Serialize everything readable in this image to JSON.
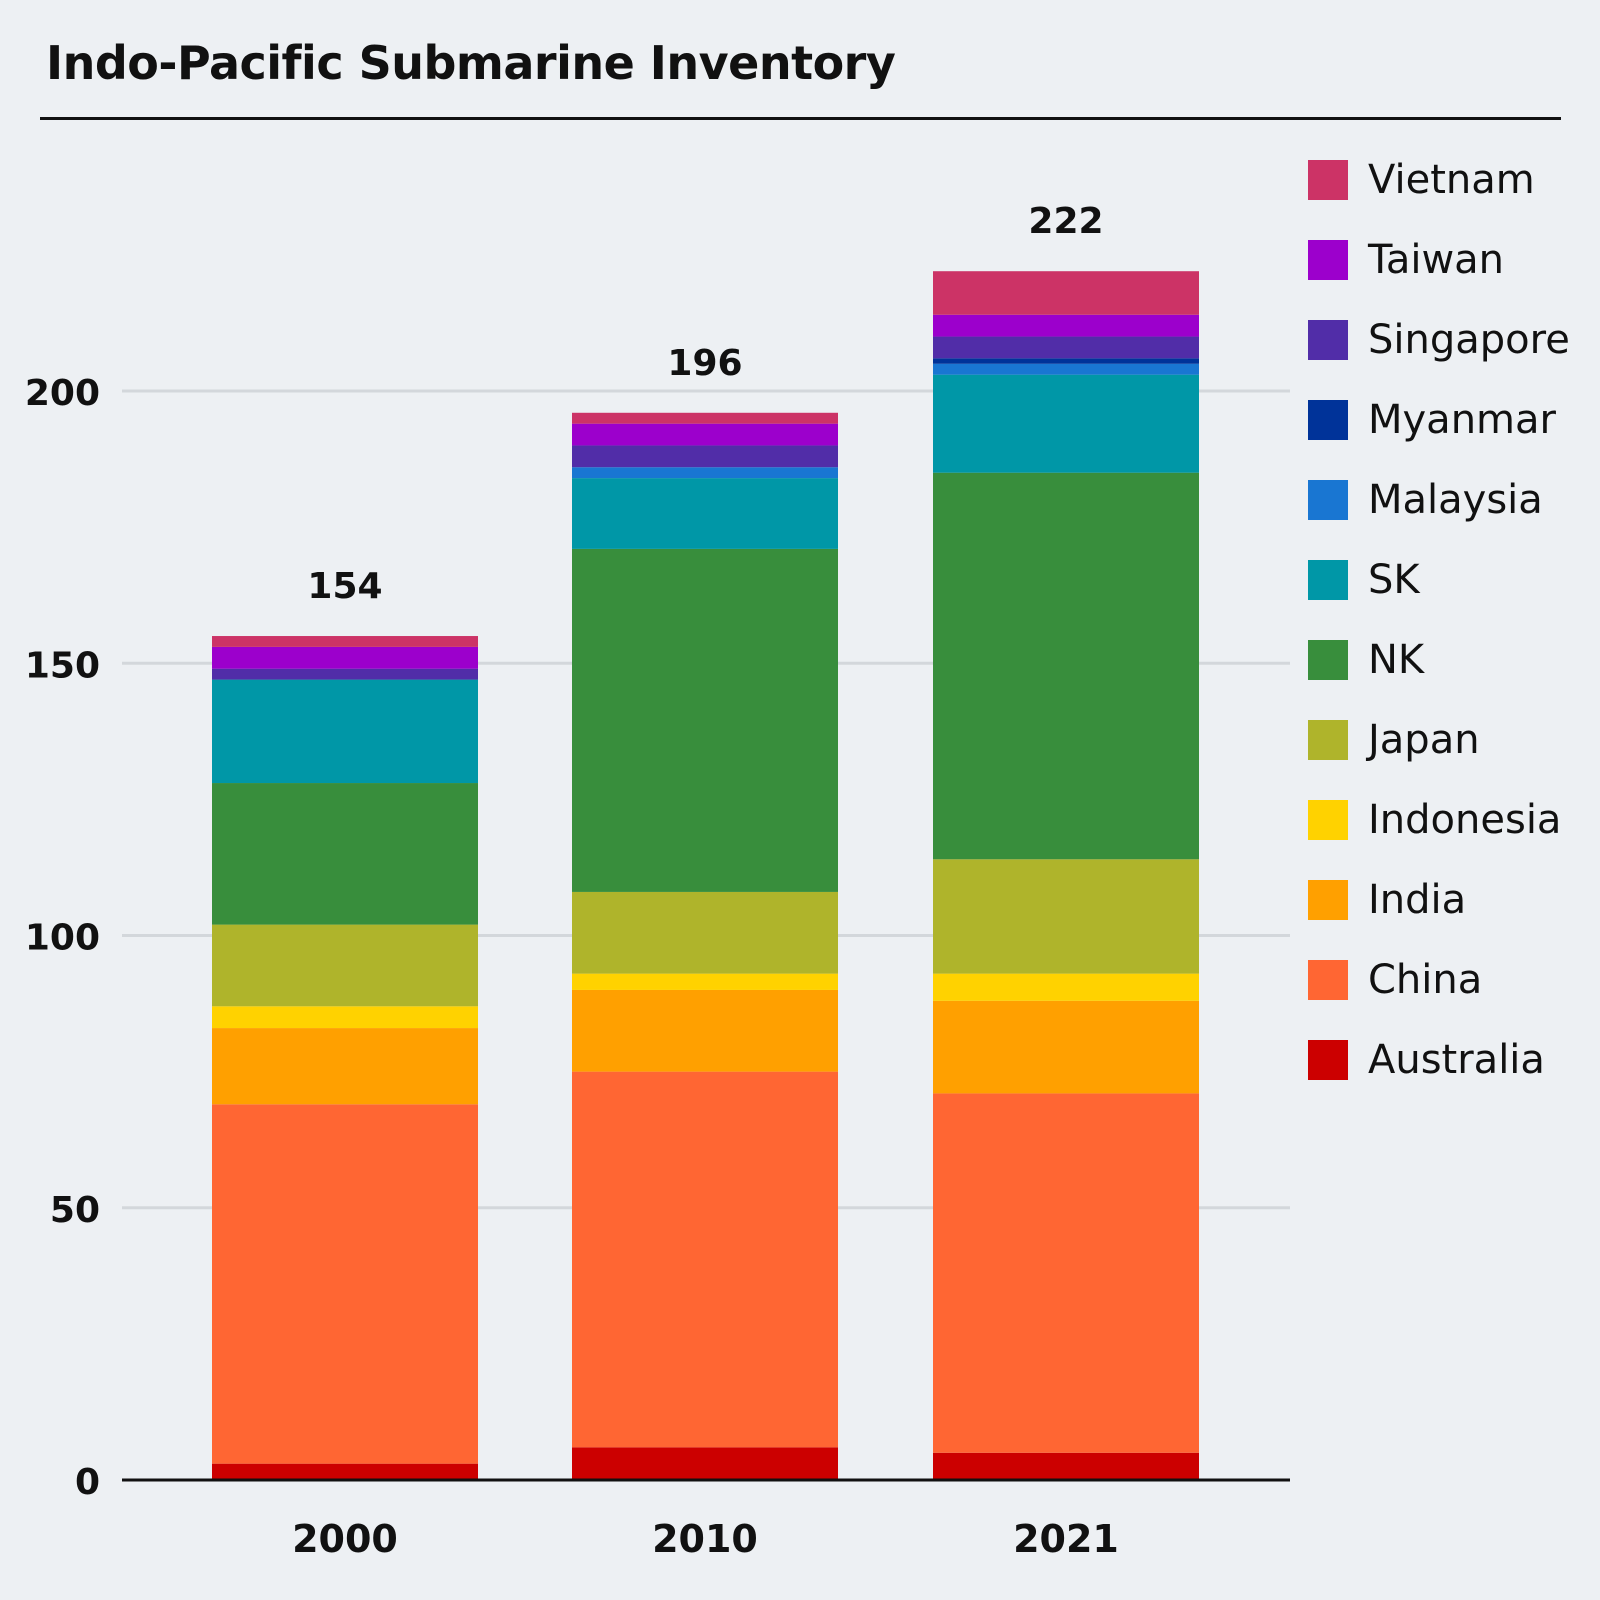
{
  "chart_data": {
    "type": "bar",
    "stacked": true,
    "title": "Indo-Pacific Submarine Inventory",
    "xlabel": "",
    "ylabel": "",
    "ylim": [
      0,
      230
    ],
    "yticks": [
      0,
      50,
      100,
      150,
      200
    ],
    "grid": true,
    "legend": "right",
    "categories": [
      "2000",
      "2010",
      "2021"
    ],
    "totals": [
      "154",
      "196",
      "222"
    ],
    "series": [
      {
        "name": "Australia",
        "color": "#cc0000",
        "values": [
          3,
          6,
          5
        ]
      },
      {
        "name": "China",
        "color": "#ff6633",
        "values": [
          66,
          69,
          66
        ]
      },
      {
        "name": "India",
        "color": "#ffa000",
        "values": [
          14,
          15,
          17
        ]
      },
      {
        "name": "Indonesia",
        "color": "#ffd200",
        "values": [
          4,
          3,
          5
        ]
      },
      {
        "name": "Japan",
        "color": "#afb42b",
        "values": [
          15,
          15,
          21
        ]
      },
      {
        "name": "NK",
        "color": "#388e3c",
        "values": [
          26,
          63,
          71
        ]
      },
      {
        "name": "SK",
        "color": "#0097a7",
        "values": [
          19,
          13,
          18
        ]
      },
      {
        "name": "Malaysia",
        "color": "#1976d2",
        "values": [
          0,
          2,
          2
        ]
      },
      {
        "name": "Myanmar",
        "color": "#003399",
        "values": [
          0,
          0,
          1
        ]
      },
      {
        "name": "Singapore",
        "color": "#512da8",
        "values": [
          2,
          4,
          4
        ]
      },
      {
        "name": "Taiwan",
        "color": "#9c00cc",
        "values": [
          4,
          4,
          4
        ]
      },
      {
        "name": "Vietnam",
        "color": "#cc3366",
        "values": [
          2,
          2,
          8
        ]
      }
    ]
  }
}
